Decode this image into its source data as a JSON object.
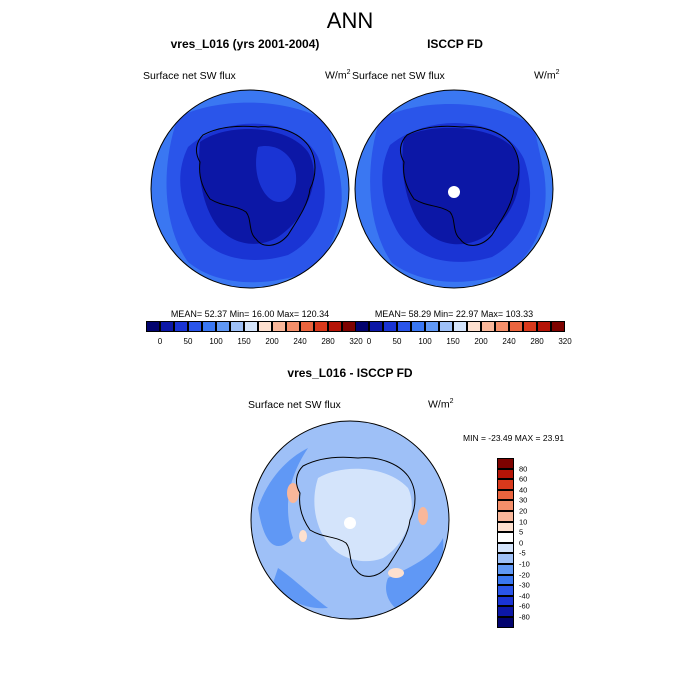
{
  "title": "ANN",
  "panels": [
    {
      "title": "vres_L016 (yrs 2001-2004)",
      "variable": "Surface net SW flux",
      "units_base": "W/m",
      "units_exp": "2",
      "stats": "MEAN=  52.37  Min=  16.00  Max= 120.34"
    },
    {
      "title": "ISCCP FD",
      "variable": "Surface net SW flux",
      "units_base": "W/m",
      "units_exp": "2",
      "stats": "MEAN=  58.29  Min=  22.97  Max= 103.33"
    }
  ],
  "diff_panel": {
    "title": "vres_L016 - ISCCP FD",
    "variable": "Surface net SW flux",
    "units_base": "W/m",
    "units_exp": "2",
    "minmax": "MIN = -23.49 MAX =  23.91"
  },
  "colorbar_top": {
    "colors": [
      "#02036e",
      "#0c17a6",
      "#1a34d4",
      "#2a55ea",
      "#3a77f2",
      "#6098f5",
      "#9ec0f7",
      "#d4e4fb",
      "#fde0cf",
      "#f9b79a",
      "#f48f6a",
      "#ea643e",
      "#d8391c",
      "#b51407",
      "#7d0200"
    ],
    "labels": [
      "0",
      "50",
      "100",
      "150",
      "200",
      "240",
      "280",
      "320"
    ]
  },
  "colorbar_diff": {
    "colors": [
      "#7d0200",
      "#b51407",
      "#d8391c",
      "#ea643e",
      "#f48f6a",
      "#f9b79a",
      "#fde0cf",
      "#ffffff",
      "#d4e4fb",
      "#9ec0f7",
      "#6098f5",
      "#3a77f2",
      "#2a55ea",
      "#1a34d4",
      "#0c17a6",
      "#02036e"
    ],
    "labels": [
      "80",
      "60",
      "40",
      "30",
      "20",
      "10",
      "5",
      "0",
      "-5",
      "-10",
      "-20",
      "-30",
      "-40",
      "-60",
      "-80"
    ]
  },
  "chart_data": {
    "type": "heatmap",
    "projection": "south polar stereographic",
    "season": "ANN",
    "field": "Surface net SW flux",
    "panels": [
      {
        "name": "vres_L016 (yrs 2001-2004)",
        "mean": 52.37,
        "min": 16.0,
        "max": 120.34
      },
      {
        "name": "ISCCP FD",
        "mean": 58.29,
        "min": 22.97,
        "max": 103.33
      },
      {
        "name": "vres_L016 - ISCCP FD",
        "min": -23.49,
        "max": 23.91
      }
    ],
    "contour_levels_fields": [
      0,
      25,
      50,
      75,
      100,
      125,
      150,
      175,
      200,
      220,
      240,
      260,
      280,
      300,
      320
    ],
    "contour_levels_difference": [
      -80,
      -60,
      -40,
      -30,
      -20,
      -10,
      -5,
      0,
      5,
      10,
      20,
      30,
      40,
      60,
      80
    ]
  }
}
